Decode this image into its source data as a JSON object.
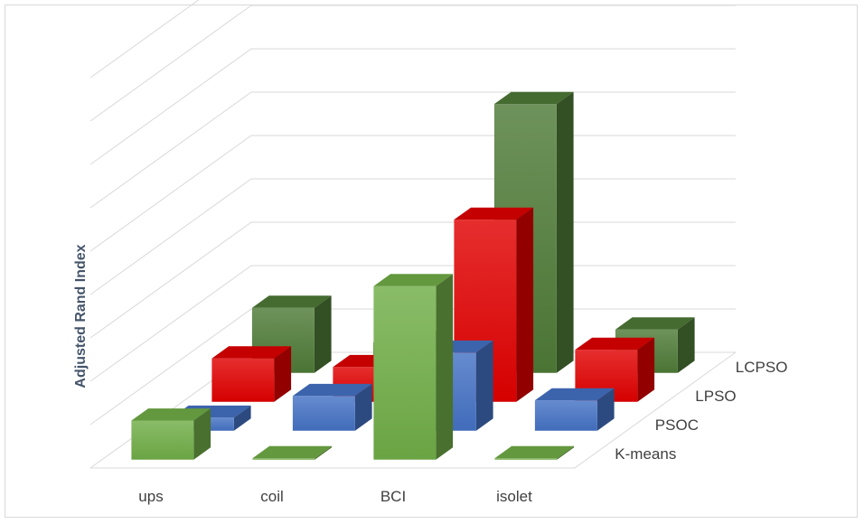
{
  "chart_data": {
    "type": "bar3d",
    "title": "",
    "ylabel": "Adjusted Rand Index",
    "xlabel": "",
    "categories": [
      "ups",
      "coil",
      "BCI",
      "isolet"
    ],
    "ylim": [
      0,
      9
    ],
    "grid": true,
    "legend": "none",
    "series": [
      {
        "name": "K-means",
        "values": [
          0.9,
          0.03,
          4.0,
          0.03
        ],
        "color": "#70ad47"
      },
      {
        "name": "PSOC",
        "values": [
          0.3,
          0.8,
          1.8,
          0.7
        ],
        "color": "#4472c4"
      },
      {
        "name": "LPSO",
        "values": [
          1.0,
          0.8,
          4.2,
          1.2
        ],
        "color": "#e00000"
      },
      {
        "name": "LCPSO",
        "values": [
          1.5,
          0.7,
          6.2,
          1.0
        ],
        "color": "#4e7a37"
      }
    ]
  }
}
